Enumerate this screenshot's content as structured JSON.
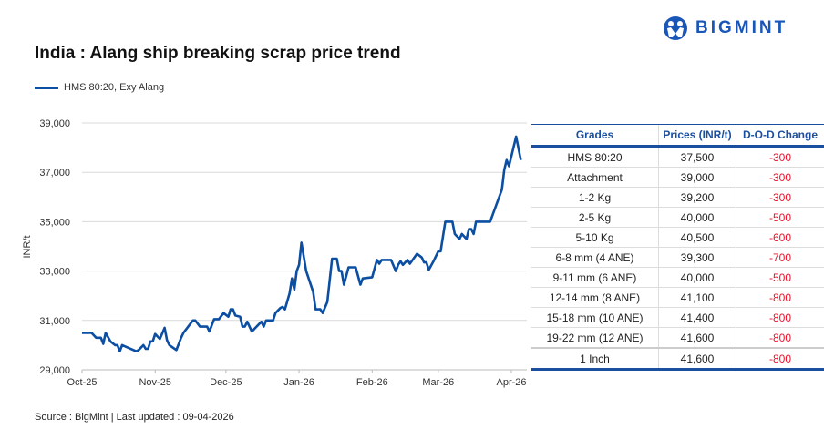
{
  "header": {
    "title": "India : Alang ship breaking scrap price trend",
    "brand": "BIGMINT"
  },
  "footer": {
    "source": "Source : BigMint | Last updated : 09-04-2026"
  },
  "colors": {
    "line": "#0b4ea2",
    "brand": "#1a56b8",
    "negative": "#e8132b",
    "table_header": "#1a4fa0"
  },
  "chart_data": {
    "type": "line",
    "title": "India : Alang ship breaking scrap price trend",
    "ylabel": "INR/t",
    "xlabel": "",
    "ylim": [
      29000,
      39000
    ],
    "yticks": [
      "29,000",
      "31,000",
      "33,000",
      "35,000",
      "37,000",
      "39,000"
    ],
    "xticks": [
      "Oct-25",
      "Nov-25",
      "Dec-25",
      "Jan-26",
      "Feb-26",
      "Mar-26",
      "Apr-26"
    ],
    "grid": "horizontal",
    "legend_position": "top-left",
    "series": [
      {
        "name": "HMS 80:20, Exy Alang",
        "points": [
          [
            "2025-10-01",
            30500
          ],
          [
            "2025-10-05",
            30500
          ],
          [
            "2025-10-07",
            30300
          ],
          [
            "2025-10-09",
            30300
          ],
          [
            "2025-10-10",
            30050
          ],
          [
            "2025-10-11",
            30500
          ],
          [
            "2025-10-13",
            30150
          ],
          [
            "2025-10-15",
            30000
          ],
          [
            "2025-10-16",
            30000
          ],
          [
            "2025-10-17",
            29750
          ],
          [
            "2025-10-18",
            30000
          ],
          [
            "2025-10-24",
            29750
          ],
          [
            "2025-10-25",
            29800
          ],
          [
            "2025-10-27",
            30000
          ],
          [
            "2025-10-28",
            29850
          ],
          [
            "2025-10-29",
            29850
          ],
          [
            "2025-10-30",
            30150
          ],
          [
            "2025-10-31",
            30150
          ],
          [
            "2025-11-01",
            30450
          ],
          [
            "2025-11-03",
            30250
          ],
          [
            "2025-11-05",
            30700
          ],
          [
            "2025-11-06",
            30200
          ],
          [
            "2025-11-07",
            30000
          ],
          [
            "2025-11-10",
            29800
          ],
          [
            "2025-11-12",
            30300
          ],
          [
            "2025-11-13",
            30500
          ],
          [
            "2025-11-17",
            31000
          ],
          [
            "2025-11-18",
            31000
          ],
          [
            "2025-11-20",
            30750
          ],
          [
            "2025-11-23",
            30750
          ],
          [
            "2025-11-24",
            30550
          ],
          [
            "2025-11-26",
            31050
          ],
          [
            "2025-11-28",
            31050
          ],
          [
            "2025-11-30",
            31300
          ],
          [
            "2025-12-02",
            31150
          ],
          [
            "2025-12-03",
            31450
          ],
          [
            "2025-12-04",
            31450
          ],
          [
            "2025-12-05",
            31200
          ],
          [
            "2025-12-07",
            31150
          ],
          [
            "2025-12-08",
            30750
          ],
          [
            "2025-12-09",
            30750
          ],
          [
            "2025-12-10",
            30950
          ],
          [
            "2025-12-12",
            30550
          ],
          [
            "2025-12-16",
            30950
          ],
          [
            "2025-12-17",
            30750
          ],
          [
            "2025-12-18",
            31000
          ],
          [
            "2025-12-21",
            31000
          ],
          [
            "2025-12-22",
            31300
          ],
          [
            "2025-12-24",
            31500
          ],
          [
            "2025-12-25",
            31550
          ],
          [
            "2025-12-26",
            31450
          ],
          [
            "2025-12-28",
            32100
          ],
          [
            "2025-12-29",
            32700
          ],
          [
            "2025-12-30",
            32250
          ],
          [
            "2025-12-31",
            33000
          ],
          [
            "2026-01-01",
            33250
          ],
          [
            "2026-01-02",
            34150
          ],
          [
            "2026-01-04",
            33000
          ],
          [
            "2026-01-07",
            32150
          ],
          [
            "2026-01-08",
            31450
          ],
          [
            "2026-01-10",
            31450
          ],
          [
            "2026-01-11",
            31300
          ],
          [
            "2026-01-13",
            31750
          ],
          [
            "2026-01-15",
            33500
          ],
          [
            "2026-01-17",
            33500
          ],
          [
            "2026-01-18",
            33000
          ],
          [
            "2026-01-19",
            33000
          ],
          [
            "2026-01-20",
            32450
          ],
          [
            "2026-01-22",
            33150
          ],
          [
            "2026-01-25",
            33150
          ],
          [
            "2026-01-27",
            32450
          ],
          [
            "2026-01-28",
            32700
          ],
          [
            "2026-02-01",
            32750
          ],
          [
            "2026-02-03",
            33450
          ],
          [
            "2026-02-04",
            33300
          ],
          [
            "2026-02-05",
            33450
          ],
          [
            "2026-02-09",
            33450
          ],
          [
            "2026-02-11",
            33000
          ],
          [
            "2026-02-12",
            33250
          ],
          [
            "2026-02-13",
            33400
          ],
          [
            "2026-02-14",
            33250
          ],
          [
            "2026-02-16",
            33450
          ],
          [
            "2026-02-17",
            33300
          ],
          [
            "2026-02-20",
            33700
          ],
          [
            "2026-02-22",
            33550
          ],
          [
            "2026-02-23",
            33350
          ],
          [
            "2026-02-24",
            33350
          ],
          [
            "2026-02-25",
            33050
          ],
          [
            "2026-02-27",
            33400
          ],
          [
            "2026-03-01",
            33800
          ],
          [
            "2026-03-02",
            33800
          ],
          [
            "2026-03-04",
            35000
          ],
          [
            "2026-03-07",
            35000
          ],
          [
            "2026-03-08",
            34500
          ],
          [
            "2026-03-10",
            34300
          ],
          [
            "2026-03-11",
            34500
          ],
          [
            "2026-03-13",
            34300
          ],
          [
            "2026-03-14",
            34700
          ],
          [
            "2026-03-15",
            34700
          ],
          [
            "2026-03-16",
            34500
          ],
          [
            "2026-03-17",
            35000
          ],
          [
            "2026-03-23",
            35000
          ],
          [
            "2026-03-28",
            36300
          ],
          [
            "2026-03-29",
            37100
          ],
          [
            "2026-03-30",
            37500
          ],
          [
            "2026-03-31",
            37250
          ],
          [
            "2026-04-03",
            38450
          ],
          [
            "2026-04-05",
            37500
          ]
        ]
      }
    ]
  },
  "table": {
    "headers": [
      "Grades",
      "Prices (INR/t)",
      "D-O-D Change"
    ],
    "rows": [
      [
        "HMS 80:20",
        "37,500",
        "-300"
      ],
      [
        "Attachment",
        "39,000",
        "-300"
      ],
      [
        "1-2 Kg",
        "39,200",
        "-300"
      ],
      [
        "2-5 Kg",
        "40,000",
        "-500"
      ],
      [
        "5-10 Kg",
        "40,500",
        "-600"
      ],
      [
        "6-8 mm (4 ANE)",
        "39,300",
        "-700"
      ],
      [
        "9-11 mm (6 ANE)",
        "40,000",
        "-500"
      ],
      [
        "12-14 mm (8 ANE)",
        "41,100",
        "-800"
      ],
      [
        "15-18 mm (10 ANE)",
        "41,400",
        "-800"
      ],
      [
        "19-22 mm (12 ANE)",
        "41,600",
        "-800"
      ],
      [
        "1 Inch",
        "41,600",
        "-800"
      ]
    ]
  }
}
